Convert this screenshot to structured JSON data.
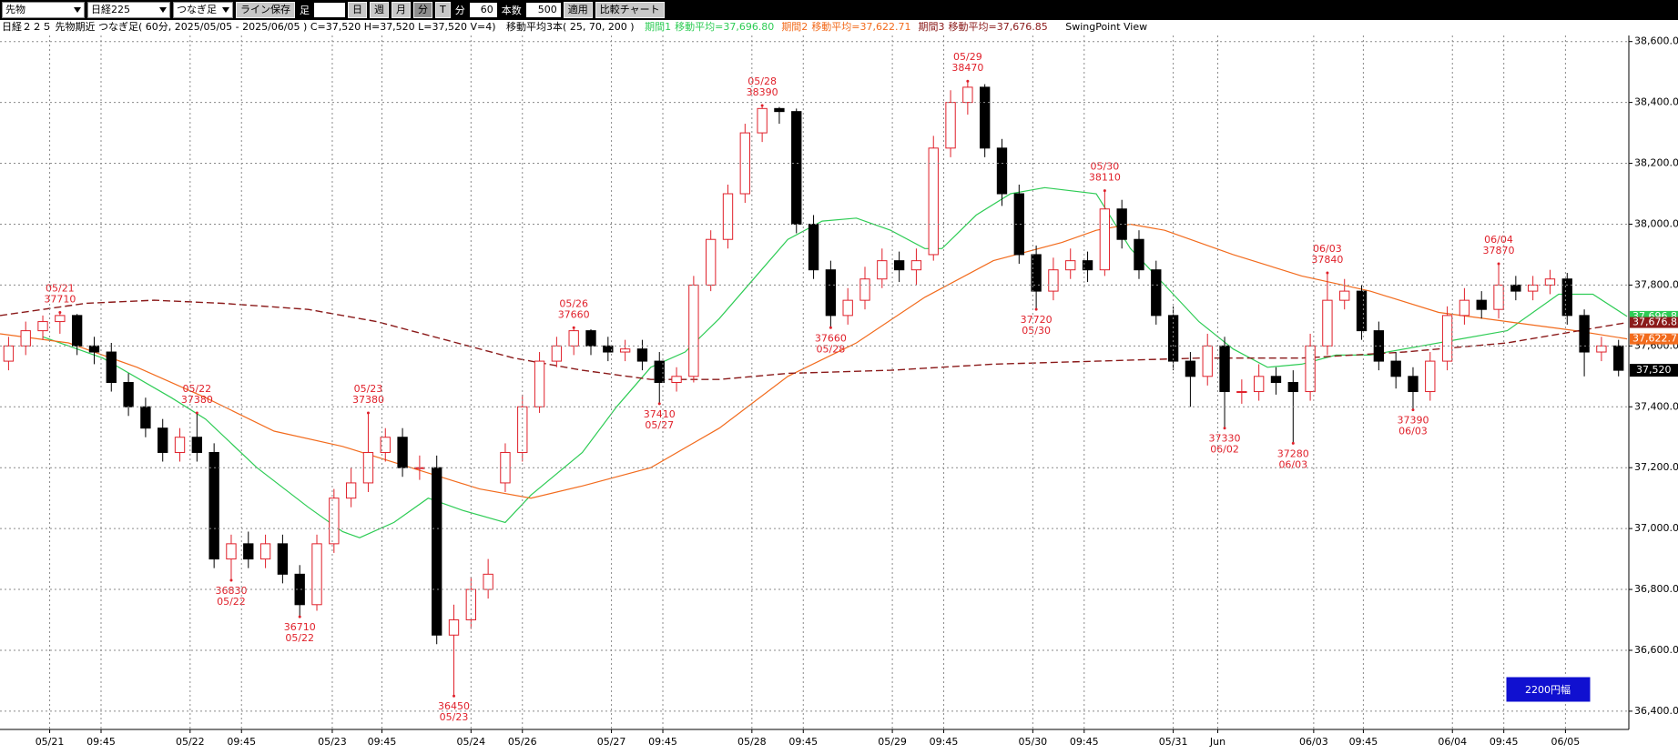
{
  "toolbar": {
    "items": [
      "先物",
      "日経225",
      "つなぎ足",
      "ライン保存",
      "足",
      "日",
      "週",
      "月",
      "分",
      "T",
      "分",
      "60",
      "本数",
      "500",
      "適用",
      "比較チャート"
    ]
  },
  "info": {
    "title": "日経２２５ 先物期近 つなぎ足( 60分, 2025/05/05 - 2025/06/05 )  C=37,520 H=37,520 L=37,520 V=4)",
    "ma_title": "移動平均3本( 25, 70, 200 )",
    "view": "SwingPoint View"
  },
  "chart_data": {
    "type": "candlestick",
    "xlim": [
      0,
      95.1
    ],
    "ylim": [
      36340,
      38620
    ],
    "grid": true,
    "yticks": [
      {
        "value": 36400,
        "label": "36,400.00"
      },
      {
        "value": 36600,
        "label": "36,600.00"
      },
      {
        "value": 36800,
        "label": "36,800.00"
      },
      {
        "value": 37000,
        "label": "37,000.00"
      },
      {
        "value": 37200,
        "label": "37,200.00"
      },
      {
        "value": 37400,
        "label": "37,400.00"
      },
      {
        "value": 37600,
        "label": "37,600.00"
      },
      {
        "value": 37800,
        "label": "37,800.00"
      },
      {
        "value": 38000,
        "label": "38,000.00"
      },
      {
        "value": 38200,
        "label": "38,200.00"
      },
      {
        "value": 38400,
        "label": "38,400.00"
      },
      {
        "value": 38600,
        "label": "38,600.00"
      }
    ],
    "xticks": [
      {
        "value": 2.9,
        "label": "05/21"
      },
      {
        "value": 5.9,
        "label": "09:45"
      },
      {
        "value": 11.1,
        "label": "05/22"
      },
      {
        "value": 14.1,
        "label": "09:45"
      },
      {
        "value": 19.4,
        "label": "05/23"
      },
      {
        "value": 22.3,
        "label": "09:45"
      },
      {
        "value": 27.5,
        "label": "05/24"
      },
      {
        "value": 30.5,
        "label": "05/26"
      },
      {
        "value": 35.7,
        "label": "05/27"
      },
      {
        "value": 38.7,
        "label": "09:45"
      },
      {
        "value": 43.9,
        "label": "05/28"
      },
      {
        "value": 46.9,
        "label": "09:45"
      },
      {
        "value": 52.1,
        "label": "05/29"
      },
      {
        "value": 55.1,
        "label": "09:45"
      },
      {
        "value": 60.3,
        "label": "05/30"
      },
      {
        "value": 63.3,
        "label": "09:45"
      },
      {
        "value": 68.5,
        "label": "05/31"
      },
      {
        "value": 71.1,
        "label": "Jun"
      },
      {
        "value": 76.7,
        "label": "06/03"
      },
      {
        "value": 79.6,
        "label": "09:45"
      },
      {
        "value": 84.8,
        "label": "06/04"
      },
      {
        "value": 87.8,
        "label": "09:45"
      },
      {
        "value": 91.4,
        "label": "06/05"
      }
    ],
    "up_color": "#e0202a",
    "down_color": "#000000",
    "candles": {
      "x": [
        0.5,
        1.5,
        2.5,
        3.5,
        4.5,
        5.5,
        6.5,
        7.5,
        8.5,
        9.5,
        10.5,
        11.5,
        12.5,
        13.5,
        14.5,
        15.5,
        16.5,
        17.5,
        18.5,
        19.5,
        20.5,
        21.5,
        22.5,
        23.5,
        24.5,
        25.5,
        26.5,
        27.5,
        28.5,
        29.5,
        30.5,
        31.5,
        32.5,
        33.5,
        34.5,
        35.5,
        36.5,
        37.5,
        38.5,
        39.5,
        40.5,
        41.5,
        42.5,
        43.5,
        44.5,
        45.5,
        46.5,
        47.5,
        48.5,
        49.5,
        50.5,
        51.5,
        52.5,
        53.5,
        54.5,
        55.5,
        56.5,
        57.5,
        58.5,
        59.5,
        60.5,
        61.5,
        62.5,
        63.5,
        64.5,
        65.5,
        66.5,
        67.5,
        68.5,
        69.5,
        70.5,
        71.5,
        72.5,
        73.5,
        74.5,
        75.5,
        76.5,
        77.5,
        78.5,
        79.5,
        80.5,
        81.5,
        82.5,
        83.5,
        84.5,
        85.5,
        86.5,
        87.5,
        88.5,
        89.5,
        90.5,
        91.5,
        92.5,
        93.5,
        94.5
      ],
      "open": [
        37550,
        37600,
        37650,
        37680,
        37700,
        37600,
        37580,
        37480,
        37400,
        37330,
        37250,
        37300,
        37250,
        36900,
        36950,
        36900,
        36950,
        36850,
        36750,
        36950,
        37100,
        37150,
        37250,
        37300,
        37200,
        37200,
        36650,
        36700,
        36800,
        37150,
        37250,
        37400,
        37550,
        37600,
        37650,
        37600,
        37580,
        37590,
        37550,
        37480,
        37500,
        37800,
        37950,
        38100,
        38300,
        38380,
        38370,
        38000,
        37850,
        37700,
        37750,
        37820,
        37880,
        37850,
        37900,
        38250,
        38400,
        38450,
        38250,
        38100,
        37900,
        37780,
        37850,
        37880,
        37850,
        38050,
        37950,
        37850,
        37700,
        37550,
        37500,
        37600,
        37450,
        37450,
        37500,
        37480,
        37450,
        37600,
        37750,
        37780,
        37650,
        37550,
        37500,
        37450,
        37550,
        37700,
        37750,
        37720,
        37800,
        37780,
        37800,
        37820,
        37700,
        37580,
        37600
      ],
      "high": [
        37630,
        37680,
        37700,
        37710,
        37705,
        37630,
        37610,
        37510,
        37430,
        37360,
        37330,
        37380,
        37280,
        36980,
        36990,
        36980,
        36980,
        36880,
        36980,
        37130,
        37200,
        37380,
        37330,
        37330,
        37240,
        37240,
        36750,
        36840,
        36900,
        37280,
        37440,
        37580,
        37630,
        37660,
        37655,
        37630,
        37620,
        37620,
        37580,
        37530,
        37830,
        37980,
        38130,
        38330,
        38390,
        38385,
        38380,
        38030,
        37880,
        37790,
        37860,
        37920,
        37910,
        37920,
        38290,
        38440,
        38470,
        38460,
        38280,
        38130,
        37930,
        37890,
        37920,
        37910,
        38110,
        38080,
        37980,
        37880,
        37730,
        37580,
        37640,
        37630,
        37490,
        37540,
        37530,
        37520,
        37640,
        37840,
        37820,
        37800,
        37680,
        37580,
        37530,
        37580,
        37730,
        37790,
        37780,
        37870,
        37830,
        37830,
        37850,
        37840,
        37720,
        37630,
        37620
      ],
      "low": [
        37520,
        37570,
        37620,
        37640,
        37570,
        37540,
        37450,
        37370,
        37300,
        37220,
        37220,
        37220,
        36870,
        36830,
        36870,
        36870,
        36820,
        36710,
        36730,
        36920,
        37070,
        37120,
        37220,
        37170,
        37160,
        36620,
        36450,
        36670,
        36770,
        37120,
        37220,
        37380,
        37530,
        37570,
        37570,
        37550,
        37550,
        37520,
        37410,
        37450,
        37480,
        37780,
        37920,
        38070,
        38270,
        38330,
        37970,
        37820,
        37660,
        37670,
        37720,
        37790,
        37810,
        37800,
        37880,
        38220,
        38360,
        38220,
        38060,
        37870,
        37720,
        37750,
        37820,
        37810,
        37830,
        37920,
        37820,
        37670,
        37520,
        37400,
        37470,
        37330,
        37410,
        37420,
        37440,
        37280,
        37420,
        37570,
        37720,
        37620,
        37520,
        37460,
        37390,
        37420,
        37520,
        37670,
        37690,
        37690,
        37750,
        37750,
        37770,
        37670,
        37500,
        37550,
        37500
      ],
      "close": [
        37600,
        37650,
        37680,
        37700,
        37600,
        37580,
        37480,
        37400,
        37330,
        37250,
        37300,
        37250,
        36900,
        36950,
        36900,
        36950,
        36850,
        36750,
        36950,
        37100,
        37150,
        37250,
        37300,
        37200,
        37200,
        36650,
        36700,
        36800,
        36850,
        37250,
        37400,
        37550,
        37600,
        37650,
        37600,
        37580,
        37590,
        37550,
        37480,
        37500,
        37800,
        37950,
        38100,
        38300,
        38380,
        38370,
        38000,
        37850,
        37700,
        37750,
        37820,
        37880,
        37850,
        37880,
        38250,
        38400,
        38450,
        38250,
        38100,
        37900,
        37780,
        37850,
        37880,
        37850,
        38050,
        37950,
        37850,
        37700,
        37550,
        37500,
        37600,
        37450,
        37450,
        37500,
        37480,
        37450,
        37600,
        37750,
        37780,
        37650,
        37550,
        37500,
        37450,
        37550,
        37700,
        37750,
        37720,
        37800,
        37780,
        37800,
        37820,
        37700,
        37580,
        37600,
        37520
      ],
      "last_label": "37,520"
    },
    "series": [
      {
        "name": "期間1",
        "label": "移動平均=37,696.80",
        "tag": "37,696.8",
        "color": "#2ecc55",
        "dash": false,
        "x": [
          2.5,
          6,
          10,
          12,
          15,
          18,
          20,
          21,
          23,
          25,
          27,
          29.5,
          31,
          34,
          36,
          38,
          40,
          42,
          44,
          46,
          48,
          50,
          52,
          54,
          55,
          57,
          59,
          61,
          64,
          66,
          68,
          70,
          72,
          74,
          76,
          78,
          80,
          83,
          85,
          88,
          91,
          93,
          95
        ],
        "values": [
          37630,
          37560,
          37430,
          37360,
          37200,
          37070,
          36990,
          36970,
          37020,
          37100,
          37060,
          37020,
          37110,
          37250,
          37400,
          37530,
          37580,
          37690,
          37820,
          37950,
          38010,
          38020,
          37980,
          37920,
          37920,
          38030,
          38100,
          38120,
          38100,
          37920,
          37800,
          37680,
          37590,
          37530,
          37540,
          37570,
          37570,
          37600,
          37620,
          37650,
          37770,
          37770,
          37697
        ]
      },
      {
        "name": "期間2",
        "label": "移動平均=37,622.71",
        "tag": "37,622.7",
        "color": "#f26b1d",
        "dash": false,
        "x": [
          0,
          4,
          8,
          12,
          16,
          20,
          24,
          28,
          31,
          34,
          38,
          42,
          46,
          50,
          54,
          58,
          62,
          64,
          66,
          68,
          72,
          76,
          80,
          84,
          88,
          92,
          95
        ],
        "values": [
          37640,
          37610,
          37530,
          37430,
          37320,
          37270,
          37200,
          37130,
          37100,
          37140,
          37200,
          37330,
          37500,
          37610,
          37760,
          37880,
          37940,
          37980,
          38000,
          37980,
          37900,
          37830,
          37780,
          37710,
          37680,
          37650,
          37623
        ]
      },
      {
        "name": "期間3",
        "label": "移動平均=37,676.85",
        "tag": "37,676.8",
        "color": "#8b1a1a",
        "dash": true,
        "x": [
          0,
          5,
          9,
          13,
          18,
          22,
          26,
          30,
          34,
          38,
          42,
          46,
          52,
          58,
          64,
          70,
          76,
          82,
          88,
          95
        ],
        "values": [
          37700,
          37740,
          37750,
          37740,
          37720,
          37680,
          37620,
          37560,
          37520,
          37490,
          37490,
          37510,
          37520,
          37540,
          37550,
          37560,
          37560,
          37580,
          37610,
          37677
        ]
      }
    ],
    "annotations": [
      {
        "x": 3.5,
        "y": 37710,
        "lines": [
          "05/21",
          "37710"
        ]
      },
      {
        "x": 11.5,
        "y": 37380,
        "lines": [
          "05/22",
          "37380"
        ]
      },
      {
        "x": 21.5,
        "y": 37380,
        "lines": [
          "05/23",
          "37380"
        ]
      },
      {
        "x": 33.5,
        "y": 37660,
        "lines": [
          "05/26",
          "37660"
        ]
      },
      {
        "x": 44.5,
        "y": 38390,
        "lines": [
          "05/28",
          "38390"
        ]
      },
      {
        "x": 56.5,
        "y": 38470,
        "lines": [
          "05/29",
          "38470"
        ]
      },
      {
        "x": 64.5,
        "y": 38110,
        "lines": [
          "05/30",
          "38110"
        ]
      },
      {
        "x": 77.5,
        "y": 37840,
        "lines": [
          "06/03",
          "37840"
        ]
      },
      {
        "x": 87.5,
        "y": 37870,
        "lines": [
          "06/04",
          "37870"
        ]
      },
      {
        "x": 13.5,
        "y": 36830,
        "lines": [
          "36830",
          "05/22"
        ]
      },
      {
        "x": 17.5,
        "y": 36710,
        "lines": [
          "36710",
          "05/22"
        ]
      },
      {
        "x": 26.5,
        "y": 36450,
        "lines": [
          "36450",
          "05/23"
        ]
      },
      {
        "x": 38.5,
        "y": 37410,
        "lines": [
          "37410",
          "05/27"
        ]
      },
      {
        "x": 48.5,
        "y": 37660,
        "lines": [
          "37660",
          "05/28"
        ]
      },
      {
        "x": 60.5,
        "y": 37720,
        "lines": [
          "37720",
          "05/30"
        ]
      },
      {
        "x": 71.5,
        "y": 37330,
        "lines": [
          "37330",
          "06/02"
        ]
      },
      {
        "x": 75.5,
        "y": 37280,
        "lines": [
          "37280",
          "06/03"
        ]
      },
      {
        "x": 82.5,
        "y": 37390,
        "lines": [
          "37390",
          "06/03"
        ]
      }
    ],
    "range_label": "2200円幅"
  }
}
